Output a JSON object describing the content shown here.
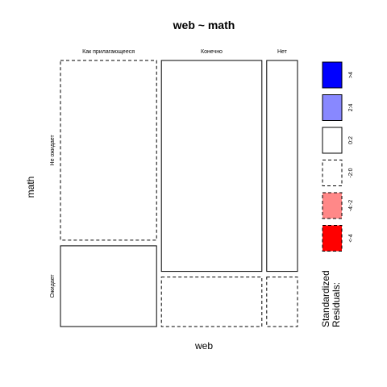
{
  "chart_data": {
    "type": "mosaic",
    "title": "web ~ math",
    "xlabel": "web",
    "ylabel": "math",
    "x_levels": [
      "Как прилагающееся",
      "Конечно",
      "Нет"
    ],
    "y_levels": [
      "Не ожидает",
      "Ожидает"
    ],
    "column_proportions": [
      0.374,
      0.391,
      0.12
    ],
    "cells": [
      {
        "web": "Как прилагающееся",
        "math": "Не ожидает",
        "share": 0.69,
        "residual_band": "-2:0"
      },
      {
        "web": "Как прилагающееся",
        "math": "Ожидает",
        "share": 0.31,
        "residual_band": "0:2"
      },
      {
        "web": "Конечно",
        "math": "Не ожидает",
        "share": 0.81,
        "residual_band": "0:2"
      },
      {
        "web": "Конечно",
        "math": "Ожидает",
        "share": 0.19,
        "residual_band": "-2:0"
      },
      {
        "web": "Нет",
        "math": "Не ожидает",
        "share": 0.81,
        "residual_band": "0:2"
      },
      {
        "web": "Нет",
        "math": "Ожидает",
        "share": 0.19,
        "residual_band": "-2:0"
      }
    ],
    "legend": {
      "title": "Standardized Residuals:",
      "placement": "right",
      "entries": [
        {
          "label": ">4",
          "color": "#0000ff",
          "dashed": false
        },
        {
          "label": "2:4",
          "color": "#8888ff",
          "dashed": false
        },
        {
          "label": "0:2",
          "color": "#ffffff",
          "dashed": false
        },
        {
          "label": "-2:0",
          "color": "#ffffff",
          "dashed": true
        },
        {
          "label": "-4:-2",
          "color": "#ff8888",
          "dashed": true
        },
        {
          "label": "<-4",
          "color": "#ff0000",
          "dashed": true
        }
      ]
    }
  }
}
